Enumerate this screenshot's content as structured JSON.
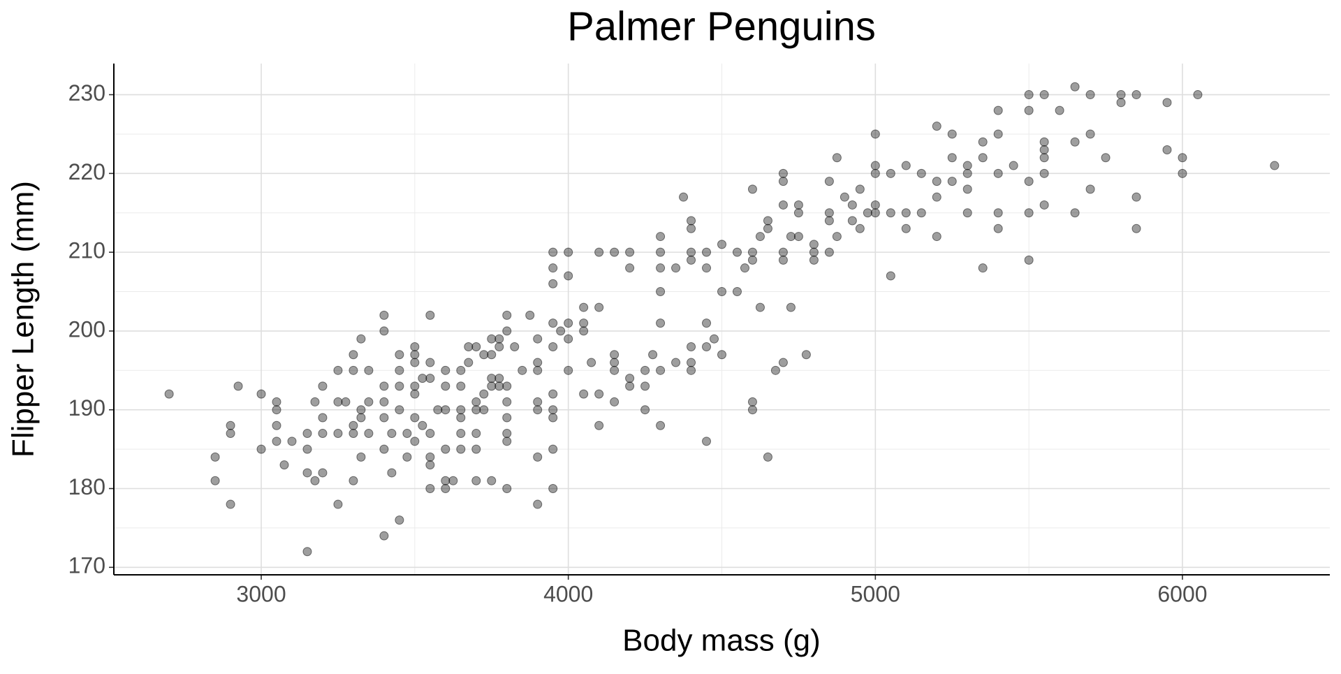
{
  "chart_data": {
    "type": "scatter",
    "title": "Palmer Penguins",
    "x_label": "Body mass (g)",
    "y_label": "Flipper Length (mm)",
    "color": "#000000",
    "grid": true,
    "xlim": [
      2520,
      6480
    ],
    "xticks": [
      3000,
      4000,
      5000,
      6000
    ],
    "ylim": [
      169.05,
      233.95
    ],
    "yticks": [
      170,
      180,
      190,
      200,
      210,
      220,
      230
    ],
    "x": [
      2700,
      2850,
      2850,
      2900,
      2900,
      2900,
      2925,
      3000,
      3000,
      3050,
      3050,
      3050,
      3050,
      3075,
      3100,
      3150,
      3150,
      3150,
      3150,
      3175,
      3175,
      3200,
      3200,
      3200,
      3200,
      3250,
      3250,
      3250,
      3250,
      3275,
      3300,
      3300,
      3300,
      3300,
      3300,
      3325,
      3325,
      3325,
      3325,
      3350,
      3350,
      3350,
      3400,
      3400,
      3400,
      3400,
      3400,
      3400,
      3400,
      3425,
      3425,
      3450,
      3450,
      3450,
      3450,
      3450,
      3475,
      3475,
      3500,
      3500,
      3500,
      3500,
      3500,
      3500,
      3500,
      3525,
      3525,
      3550,
      3550,
      3550,
      3550,
      3550,
      3550,
      3550,
      3575,
      3600,
      3600,
      3600,
      3600,
      3600,
      3600,
      3625,
      3650,
      3650,
      3650,
      3650,
      3650,
      3650,
      3675,
      3675,
      3700,
      3700,
      3700,
      3700,
      3700,
      3700,
      3725,
      3725,
      3725,
      3750,
      3750,
      3750,
      3750,
      3750,
      3775,
      3775,
      3775,
      3775,
      3800,
      3800,
      3800,
      3800,
      3800,
      3800,
      3800,
      3800,
      3825,
      3850,
      3875,
      3900,
      3900,
      3900,
      3900,
      3900,
      3900,
      3900,
      3950,
      3950,
      3950,
      3950,
      3950,
      3950,
      3950,
      3950,
      3950,
      3950,
      3975,
      4000,
      4000,
      4000,
      4000,
      4000,
      4050,
      4050,
      4050,
      4050,
      4075,
      4100,
      4100,
      4100,
      4100,
      4150,
      4150,
      4150,
      4150,
      4150,
      4200,
      4200,
      4200,
      4200,
      4250,
      4250,
      4250,
      4275,
      4300,
      4300,
      4300,
      4300,
      4300,
      4300,
      4300,
      4350,
      4350,
      4375,
      4400,
      4400,
      4400,
      4400,
      4400,
      4400,
      4400,
      4450,
      4450,
      4450,
      4450,
      4450,
      4475,
      4500,
      4500,
      4500,
      4550,
      4550,
      4575,
      4600,
      4600,
      4600,
      4600,
      4600,
      4625,
      4625,
      4650,
      4650,
      4650,
      4675,
      4700,
      4700,
      4700,
      4700,
      4700,
      4700,
      4725,
      4725,
      4750,
      4750,
      4750,
      4775,
      4800,
      4800,
      4800,
      4850,
      4850,
      4850,
      4850,
      4875,
      4875,
      4900,
      4925,
      4925,
      4950,
      4950,
      4975,
      5000,
      5000,
      5000,
      5000,
      5000,
      5050,
      5050,
      5050,
      5100,
      5100,
      5100,
      5150,
      5150,
      5200,
      5200,
      5200,
      5200,
      5250,
      5250,
      5250,
      5300,
      5300,
      5300,
      5300,
      5350,
      5350,
      5350,
      5400,
      5400,
      5400,
      5400,
      5400,
      5450,
      5500,
      5500,
      5500,
      5500,
      5500,
      5550,
      5550,
      5550,
      5550,
      5550,
      5550,
      5600,
      5650,
      5650,
      5650,
      5700,
      5700,
      5700,
      5750,
      5800,
      5800,
      5850,
      5850,
      5850,
      5950,
      5950,
      6000,
      6000,
      6050,
      6300
    ],
    "values": [
      192,
      184,
      181,
      188,
      187,
      178,
      193,
      192,
      185,
      191,
      190,
      188,
      186,
      183,
      186,
      187,
      185,
      182,
      172,
      191,
      181,
      193,
      189,
      187,
      182,
      195,
      191,
      187,
      178,
      191,
      197,
      195,
      188,
      187,
      181,
      199,
      190,
      189,
      184,
      195,
      191,
      187,
      202,
      200,
      193,
      191,
      189,
      185,
      174,
      187,
      182,
      197,
      195,
      193,
      190,
      176,
      187,
      184,
      198,
      197,
      196,
      193,
      192,
      189,
      186,
      194,
      188,
      202,
      196,
      194,
      187,
      184,
      183,
      180,
      190,
      195,
      193,
      190,
      185,
      181,
      180,
      181,
      195,
      193,
      190,
      189,
      187,
      185,
      196,
      198,
      198,
      191,
      190,
      187,
      185,
      181,
      197,
      192,
      190,
      199,
      197,
      194,
      193,
      181,
      199,
      198,
      194,
      193,
      202,
      200,
      193,
      191,
      189,
      187,
      186,
      180,
      198,
      195,
      202,
      199,
      196,
      195,
      191,
      190,
      184,
      178,
      210,
      208,
      206,
      201,
      198,
      192,
      190,
      189,
      185,
      180,
      200,
      210,
      207,
      201,
      199,
      195,
      203,
      201,
      200,
      192,
      196,
      210,
      203,
      192,
      188,
      210,
      197,
      196,
      195,
      191,
      210,
      208,
      194,
      193,
      195,
      193,
      190,
      197,
      212,
      210,
      208,
      205,
      201,
      195,
      188,
      208,
      196,
      217,
      214,
      213,
      210,
      209,
      198,
      196,
      195,
      210,
      208,
      201,
      198,
      186,
      199,
      211,
      205,
      197,
      210,
      205,
      208,
      218,
      210,
      209,
      191,
      190,
      212,
      203,
      214,
      213,
      184,
      195,
      220,
      219,
      216,
      210,
      209,
      196,
      212,
      203,
      216,
      215,
      212,
      197,
      211,
      210,
      209,
      219,
      215,
      214,
      210,
      222,
      212,
      217,
      216,
      214,
      218,
      213,
      215,
      225,
      221,
      220,
      216,
      215,
      220,
      215,
      207,
      221,
      215,
      213,
      220,
      215,
      226,
      219,
      217,
      212,
      225,
      222,
      219,
      221,
      220,
      218,
      215,
      224,
      222,
      208,
      228,
      225,
      220,
      215,
      213,
      221,
      230,
      228,
      219,
      215,
      209,
      230,
      224,
      223,
      222,
      220,
      216,
      228,
      231,
      224,
      215,
      230,
      225,
      218,
      222,
      230,
      229,
      230,
      217,
      213,
      229,
      223,
      222,
      220,
      230,
      221
    ]
  }
}
